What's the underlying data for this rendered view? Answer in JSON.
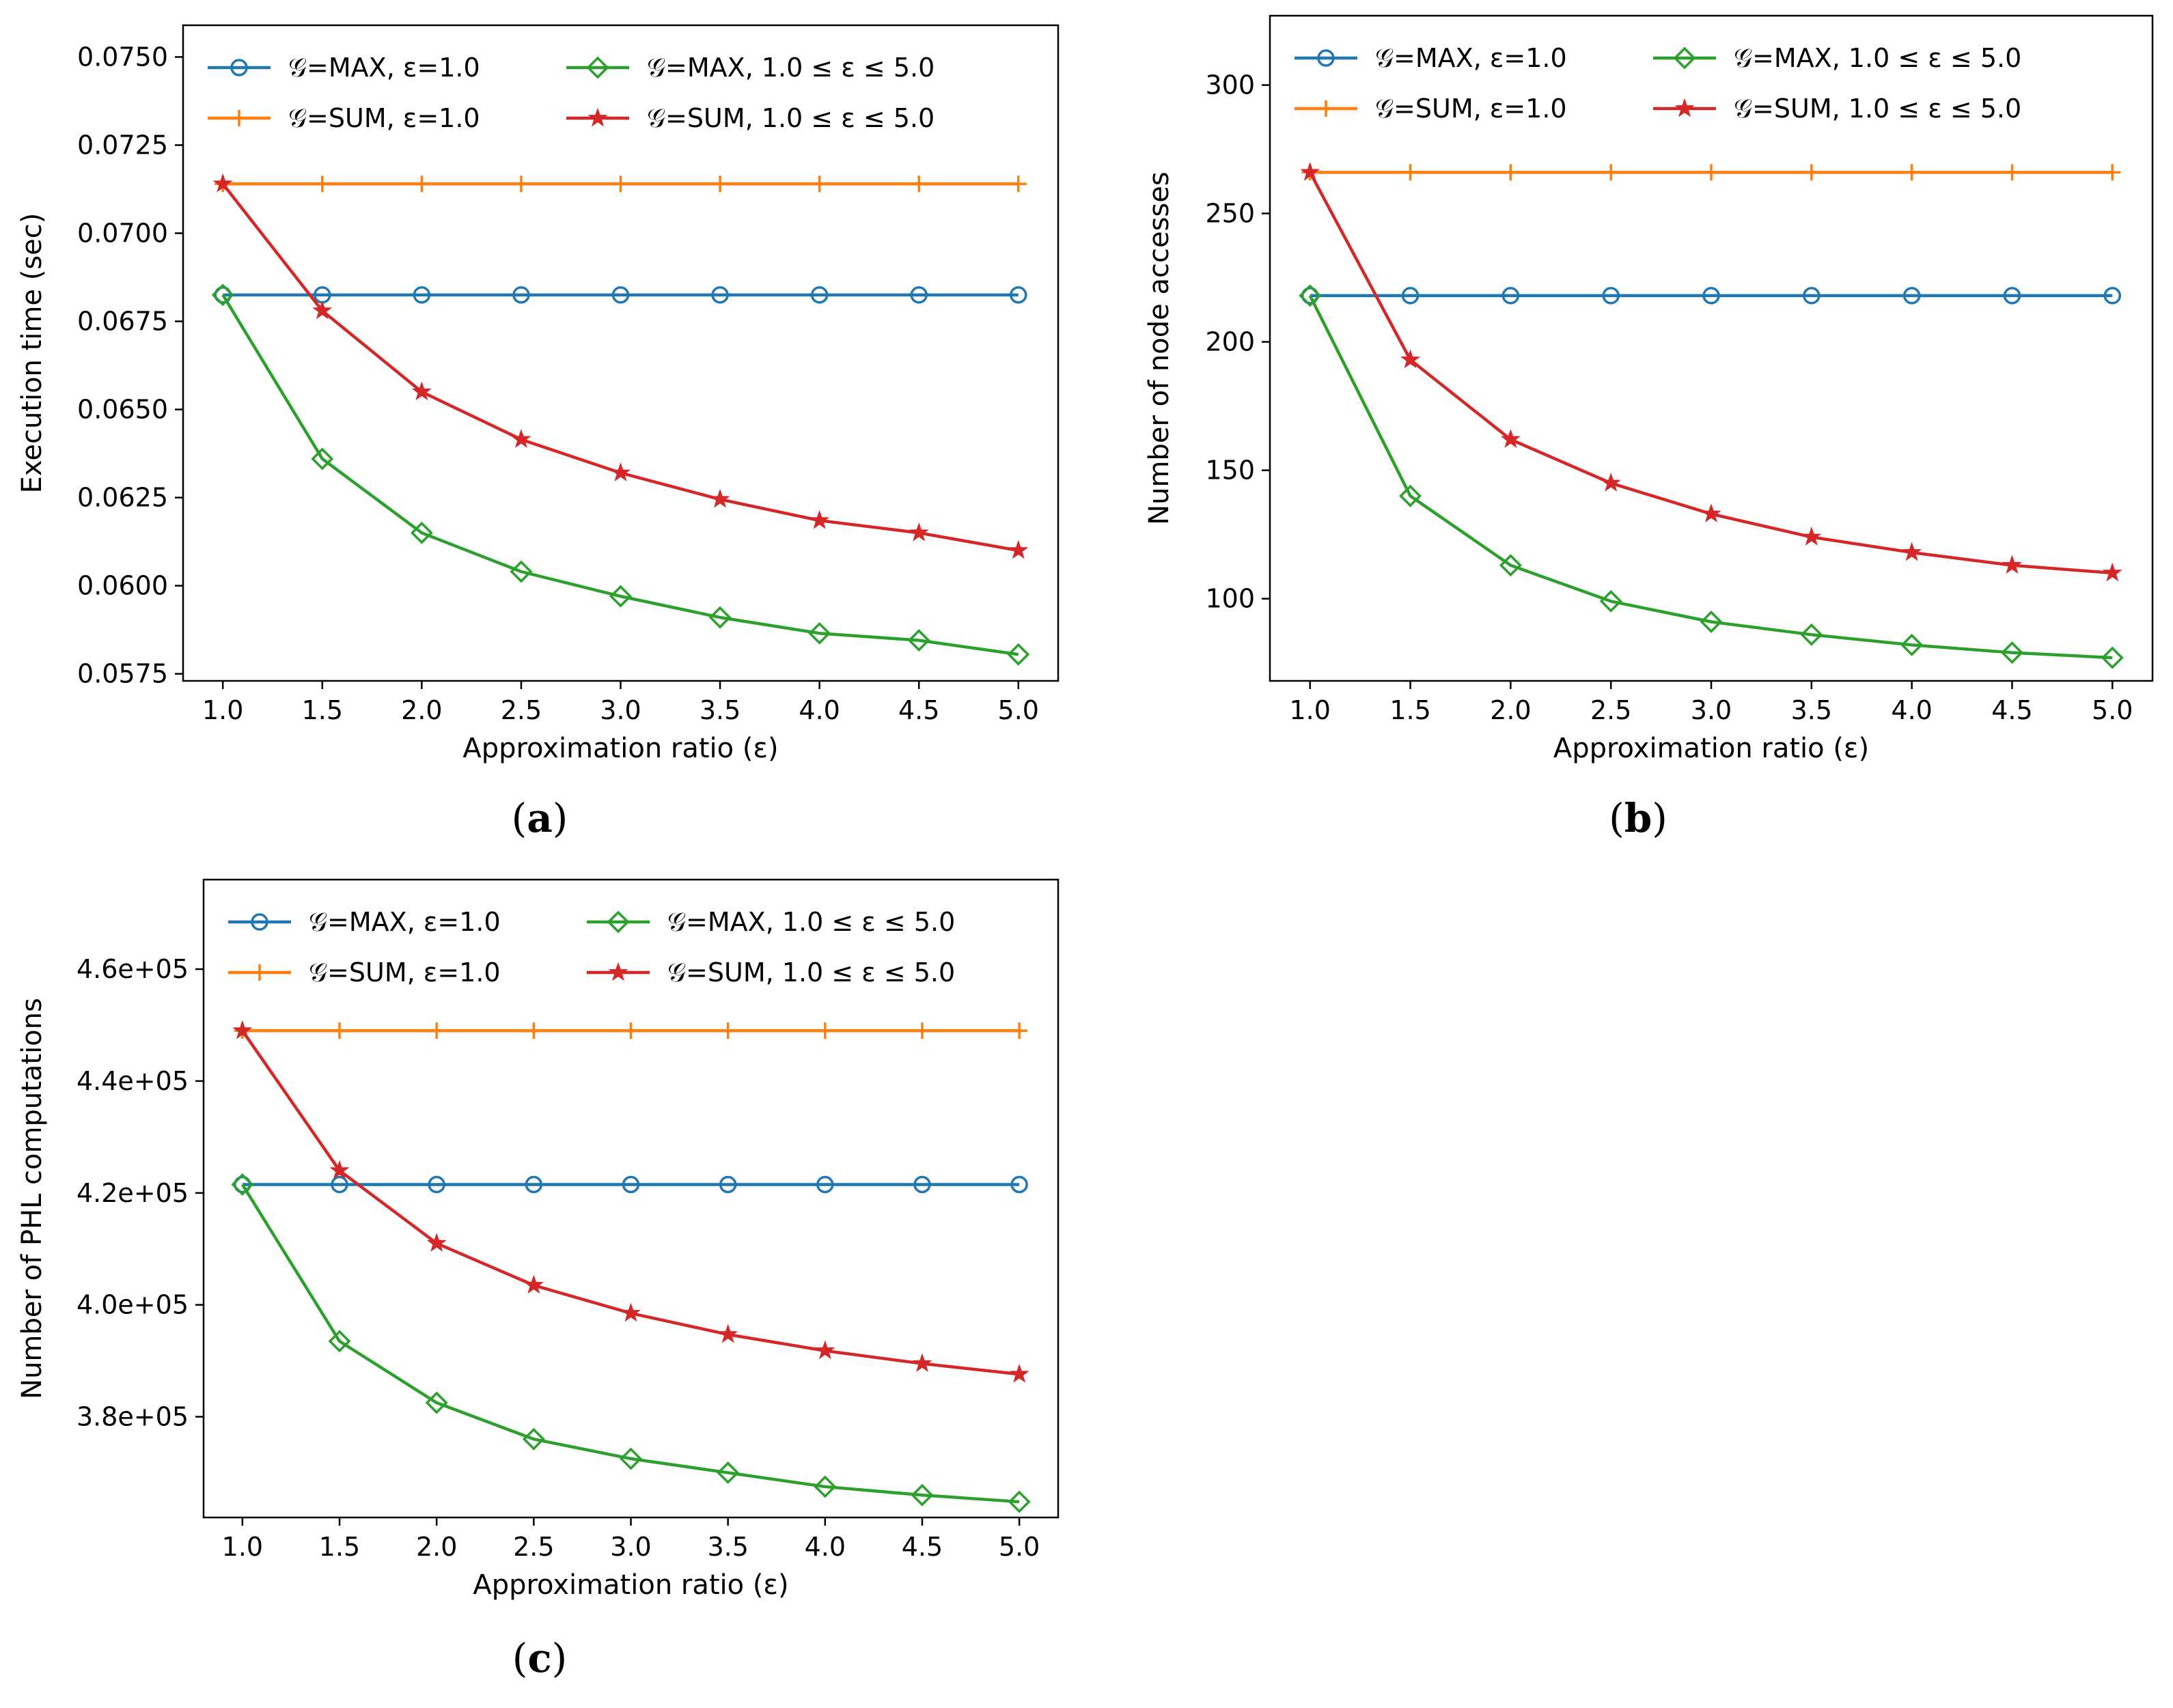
{
  "figure": {
    "panels": [
      "a",
      "b",
      "c"
    ]
  },
  "chart_data": [
    {
      "id": "a",
      "type": "line",
      "panel_label": "a",
      "xlabel": "Approximation ratio (ε)",
      "ylabel": "Execution time (sec)",
      "x": [
        1.0,
        1.5,
        2.0,
        2.5,
        3.0,
        3.5,
        4.0,
        4.5,
        5.0
      ],
      "xticks": [
        "1.0",
        "1.5",
        "2.0",
        "2.5",
        "3.0",
        "3.5",
        "4.0",
        "4.5",
        "5.0"
      ],
      "yticks": [
        0.0575,
        0.06,
        0.0625,
        0.065,
        0.0675,
        0.07,
        0.0725,
        0.075
      ],
      "ytick_labels": [
        "0.0575",
        "0.0600",
        "0.0625",
        "0.0650",
        "0.0675",
        "0.0700",
        "0.0725",
        "0.0750"
      ],
      "xlim": [
        0.8,
        5.2
      ],
      "ylim": [
        0.0573,
        0.0759
      ],
      "series": [
        {
          "name": "𝒢=MAX, ε=1.0",
          "color": "#1f77b4",
          "marker": "circle",
          "values": [
            0.06825,
            0.06825,
            0.06825,
            0.06825,
            0.06825,
            0.06825,
            0.06825,
            0.06825,
            0.06825
          ]
        },
        {
          "name": "𝒢=SUM, ε=1.0",
          "color": "#ff7f0e",
          "marker": "plus",
          "values": [
            0.0714,
            0.0714,
            0.0714,
            0.0714,
            0.0714,
            0.0714,
            0.0714,
            0.0714,
            0.0714
          ]
        },
        {
          "name": "𝒢=MAX, 1.0 ≤ ε ≤ 5.0",
          "color": "#2ca02c",
          "marker": "diamond",
          "values": [
            0.06825,
            0.0636,
            0.0615,
            0.0604,
            0.0597,
            0.0591,
            0.05865,
            0.05845,
            0.05805
          ]
        },
        {
          "name": "𝒢=SUM, 1.0 ≤ ε ≤ 5.0",
          "color": "#d62728",
          "marker": "star",
          "values": [
            0.0714,
            0.0678,
            0.0655,
            0.06415,
            0.0632,
            0.06245,
            0.06185,
            0.0615,
            0.061
          ]
        }
      ]
    },
    {
      "id": "b",
      "type": "line",
      "panel_label": "b",
      "xlabel": "Approximation ratio (ε)",
      "ylabel": "Number of node accesses",
      "x": [
        1.0,
        1.5,
        2.0,
        2.5,
        3.0,
        3.5,
        4.0,
        4.5,
        5.0
      ],
      "xticks": [
        "1.0",
        "1.5",
        "2.0",
        "2.5",
        "3.0",
        "3.5",
        "4.0",
        "4.5",
        "5.0"
      ],
      "yticks": [
        100,
        150,
        200,
        250,
        300
      ],
      "ytick_labels": [
        "100",
        "150",
        "200",
        "250",
        "300"
      ],
      "xlim": [
        0.8,
        5.2
      ],
      "ylim": [
        68,
        327
      ],
      "series": [
        {
          "name": "𝒢=MAX, ε=1.0",
          "color": "#1f77b4",
          "marker": "circle",
          "values": [
            218,
            218,
            218,
            218,
            218,
            218,
            218,
            218,
            218
          ]
        },
        {
          "name": "𝒢=SUM, ε=1.0",
          "color": "#ff7f0e",
          "marker": "plus",
          "values": [
            266,
            266,
            266,
            266,
            266,
            266,
            266,
            266,
            266
          ]
        },
        {
          "name": "𝒢=MAX, 1.0 ≤ ε ≤ 5.0",
          "color": "#2ca02c",
          "marker": "diamond",
          "values": [
            218,
            140,
            113,
            99,
            91,
            86,
            82,
            79,
            77
          ]
        },
        {
          "name": "𝒢=SUM, 1.0 ≤ ε ≤ 5.0",
          "color": "#d62728",
          "marker": "star",
          "values": [
            266,
            193,
            162,
            145,
            133,
            124,
            118,
            113,
            110
          ]
        }
      ]
    },
    {
      "id": "c",
      "type": "line",
      "panel_label": "c",
      "xlabel": "Approximation ratio (ε)",
      "ylabel": "Number of PHL computations",
      "x": [
        1.0,
        1.5,
        2.0,
        2.5,
        3.0,
        3.5,
        4.0,
        4.5,
        5.0
      ],
      "xticks": [
        "1.0",
        "1.5",
        "2.0",
        "2.5",
        "3.0",
        "3.5",
        "4.0",
        "4.5",
        "5.0"
      ],
      "yticks": [
        380000,
        400000,
        420000,
        440000,
        460000
      ],
      "ytick_labels": [
        "3.8e+05",
        "4.0e+05",
        "4.2e+05",
        "4.4e+05",
        "4.6e+05"
      ],
      "xlim": [
        0.8,
        5.2
      ],
      "ylim": [
        362000,
        476000
      ],
      "series": [
        {
          "name": "𝒢=MAX, ε=1.0",
          "color": "#1f77b4",
          "marker": "circle",
          "values": [
            421500,
            421500,
            421500,
            421500,
            421500,
            421500,
            421500,
            421500,
            421500
          ]
        },
        {
          "name": "𝒢=SUM, ε=1.0",
          "color": "#ff7f0e",
          "marker": "plus",
          "values": [
            449000,
            449000,
            449000,
            449000,
            449000,
            449000,
            449000,
            449000,
            449000
          ]
        },
        {
          "name": "𝒢=MAX, 1.0 ≤ ε ≤ 5.0",
          "color": "#2ca02c",
          "marker": "diamond",
          "values": [
            421500,
            393500,
            382500,
            376000,
            372500,
            370000,
            367500,
            366000,
            364800
          ]
        },
        {
          "name": "𝒢=SUM, 1.0 ≤ ε ≤ 5.0",
          "color": "#d62728",
          "marker": "star",
          "values": [
            449000,
            424000,
            411000,
            403500,
            398500,
            394700,
            391800,
            389500,
            387600
          ]
        }
      ]
    }
  ]
}
